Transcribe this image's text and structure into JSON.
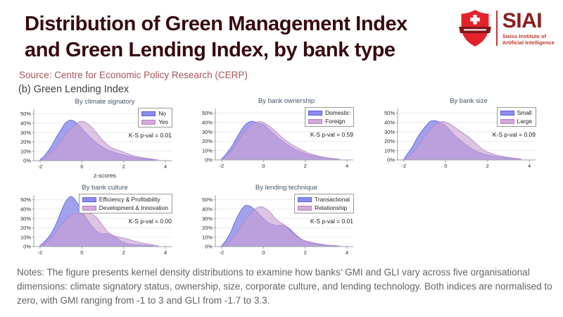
{
  "header": {
    "title_line1": "Distribution of Green Management Index",
    "title_line2": "and Green Lending Index, by bank type",
    "source": "Source: Centre for Economic Policy Research (CERP)",
    "panel_label": "(b) Green Lending Index"
  },
  "logo": {
    "acronym": "SIAI",
    "name_line1": "Swiss Institute of",
    "name_line2": "Artificial Intelligence"
  },
  "notes": {
    "text": "Notes: The figure presents kernel density distributions to examine how banks' GMI and GLI vary across five organisational dimensions: climate signatory status, ownership, size, corporate culture, and lending technology. Both indices are normalised to zero, with GMI ranging from -1 to 3 and GLI from -1.7 to 3.3."
  },
  "colors": {
    "title_maroon": "#37090e",
    "source_red": "#a6565b",
    "logo_red": "#e4222c",
    "logo_dark_red": "#801519",
    "density_blue_fill": "#7d7de8",
    "density_blue_stroke": "#5f5fd8",
    "density_pink_fill": "#cb9fd2",
    "density_pink_stroke": "#b583c4",
    "legend_blue": "#8c8cec",
    "legend_pink": "#d2aad8",
    "grid": "#e8eef2",
    "axis": "#9aa0a6"
  },
  "axis": {
    "x_ticks": [
      -2,
      0,
      2,
      4
    ],
    "y_ticks": [
      0,
      10,
      20,
      30,
      40,
      50
    ],
    "y_tick_suffix": "%",
    "xlim": [
      -2.3,
      4.3
    ],
    "ylim": [
      0,
      55
    ],
    "grid": "horizontal"
  },
  "chart_data": [
    {
      "type": "area",
      "title": "By climate signatory",
      "ks_label": "K-S p-val = 0.01",
      "xlabel": "z-scores",
      "series": [
        {
          "name": "No",
          "color_key": "blue",
          "points": [
            [
              -2,
              1
            ],
            [
              -1.8,
              5
            ],
            [
              -1.5,
              14
            ],
            [
              -1.2,
              26
            ],
            [
              -1,
              33
            ],
            [
              -0.8,
              40
            ],
            [
              -0.6,
              43
            ],
            [
              -0.45,
              43
            ],
            [
              -0.3,
              41
            ],
            [
              -0.1,
              37
            ],
            [
              0.1,
              32
            ],
            [
              0.4,
              25
            ],
            [
              0.7,
              19
            ],
            [
              1,
              14.5
            ],
            [
              1.3,
              11
            ],
            [
              1.6,
              8.5
            ],
            [
              2,
              6
            ],
            [
              2.4,
              4
            ],
            [
              2.8,
              2.5
            ],
            [
              3.2,
              1.5
            ],
            [
              3.5,
              1
            ]
          ]
        },
        {
          "name": "Yes",
          "color_key": "pink",
          "points": [
            [
              -1.95,
              0.5
            ],
            [
              -1.7,
              4
            ],
            [
              -1.4,
              10
            ],
            [
              -1.1,
              18
            ],
            [
              -0.8,
              27
            ],
            [
              -0.5,
              35
            ],
            [
              -0.2,
              40.5
            ],
            [
              0,
              42
            ],
            [
              0.2,
              40.5
            ],
            [
              0.5,
              35
            ],
            [
              0.8,
              27
            ],
            [
              1.1,
              19.5
            ],
            [
              1.4,
              14
            ],
            [
              1.7,
              11.5
            ],
            [
              2,
              9
            ],
            [
              2.3,
              6.5
            ],
            [
              2.7,
              4
            ],
            [
              3.1,
              2.5
            ],
            [
              3.5,
              1.2
            ],
            [
              3.65,
              0.8
            ]
          ]
        }
      ]
    },
    {
      "type": "area",
      "title": "By bank ownership",
      "ks_label": "K-S p-val = 0.59",
      "xlabel": "",
      "series": [
        {
          "name": "Domestic",
          "color_key": "blue",
          "points": [
            [
              -2,
              1
            ],
            [
              -1.8,
              6
            ],
            [
              -1.5,
              15
            ],
            [
              -1.2,
              27
            ],
            [
              -0.9,
              37
            ],
            [
              -0.65,
              41
            ],
            [
              -0.45,
              41
            ],
            [
              -0.25,
              39.5
            ],
            [
              0,
              38
            ],
            [
              0.2,
              34
            ],
            [
              0.5,
              28
            ],
            [
              0.8,
              22
            ],
            [
              1.1,
              17
            ],
            [
              1.5,
              11.5
            ],
            [
              1.9,
              7.5
            ],
            [
              2.3,
              5
            ],
            [
              2.7,
              3
            ],
            [
              3.1,
              2
            ],
            [
              3.55,
              1
            ]
          ]
        },
        {
          "name": "Foreign",
          "color_key": "pink",
          "points": [
            [
              -2,
              0.5
            ],
            [
              -1.7,
              5
            ],
            [
              -1.4,
              13
            ],
            [
              -1.1,
              24
            ],
            [
              -0.8,
              33
            ],
            [
              -0.5,
              38.5
            ],
            [
              -0.2,
              41
            ],
            [
              0,
              40
            ],
            [
              0.2,
              37.5
            ],
            [
              0.5,
              32
            ],
            [
              0.8,
              26
            ],
            [
              1.1,
              20.5
            ],
            [
              1.4,
              16
            ],
            [
              1.8,
              11
            ],
            [
              2.2,
              7
            ],
            [
              2.6,
              4.5
            ],
            [
              3,
              2.5
            ],
            [
              3.4,
              1.3
            ],
            [
              3.65,
              0.8
            ]
          ]
        }
      ]
    },
    {
      "type": "area",
      "title": "By bank size",
      "ks_label": "K-S p-val = 0.09",
      "xlabel": "",
      "series": [
        {
          "name": "Small",
          "color_key": "blue",
          "points": [
            [
              -2,
              1
            ],
            [
              -1.85,
              6
            ],
            [
              -1.6,
              14
            ],
            [
              -1.3,
              26
            ],
            [
              -1,
              35
            ],
            [
              -0.75,
              41
            ],
            [
              -0.55,
              42
            ],
            [
              -0.35,
              41
            ],
            [
              -0.1,
              38.5
            ],
            [
              0.15,
              33
            ],
            [
              0.45,
              26
            ],
            [
              0.75,
              20
            ],
            [
              1.05,
              15
            ],
            [
              1.4,
              10
            ],
            [
              1.8,
              6.5
            ],
            [
              2.2,
              4.5
            ],
            [
              2.7,
              3
            ],
            [
              3.1,
              2
            ],
            [
              3.55,
              1
            ]
          ]
        },
        {
          "name": "Large",
          "color_key": "pink",
          "points": [
            [
              -1.95,
              0.5
            ],
            [
              -1.7,
              4.5
            ],
            [
              -1.4,
              12
            ],
            [
              -1.1,
              22
            ],
            [
              -0.8,
              31
            ],
            [
              -0.5,
              37.5
            ],
            [
              -0.2,
              41
            ],
            [
              0,
              40.5
            ],
            [
              0.2,
              38.5
            ],
            [
              0.5,
              34
            ],
            [
              0.8,
              29
            ],
            [
              1.1,
              24.5
            ],
            [
              1.4,
              18.5
            ],
            [
              1.7,
              12.5
            ],
            [
              2,
              8.5
            ],
            [
              2.4,
              5.5
            ],
            [
              2.8,
              3.5
            ],
            [
              3.2,
              2
            ],
            [
              3.6,
              1
            ]
          ]
        }
      ]
    },
    {
      "type": "area",
      "title": "By bank culture",
      "ks_label": "K-S p-val = 0.00",
      "xlabel": "",
      "series": [
        {
          "name": "Efficiency & Profitability",
          "color_key": "blue",
          "points": [
            [
              -2,
              1
            ],
            [
              -1.8,
              5
            ],
            [
              -1.5,
              13
            ],
            [
              -1.2,
              26
            ],
            [
              -0.95,
              40
            ],
            [
              -0.75,
              49
            ],
            [
              -0.55,
              53.5
            ],
            [
              -0.4,
              52
            ],
            [
              -0.2,
              46
            ],
            [
              0,
              38.5
            ],
            [
              0.2,
              31
            ],
            [
              0.45,
              23
            ],
            [
              0.7,
              16.5
            ],
            [
              0.95,
              13.5
            ],
            [
              1.2,
              14
            ],
            [
              1.4,
              13
            ],
            [
              1.65,
              9.5
            ],
            [
              1.9,
              5.5
            ],
            [
              2.2,
              3
            ],
            [
              2.6,
              2
            ],
            [
              3,
              1.5
            ],
            [
              3.4,
              1
            ]
          ]
        },
        {
          "name": "Development & Innovation",
          "color_key": "pink",
          "points": [
            [
              -2,
              2
            ],
            [
              -1.9,
              1.2
            ],
            [
              -1.65,
              5
            ],
            [
              -1.35,
              12
            ],
            [
              -1.05,
              21
            ],
            [
              -0.75,
              29
            ],
            [
              -0.45,
              34
            ],
            [
              -0.15,
              35.5
            ],
            [
              0.2,
              36
            ],
            [
              0.5,
              34.5
            ],
            [
              0.75,
              30
            ],
            [
              0.95,
              24
            ],
            [
              1.15,
              18
            ],
            [
              1.35,
              13.5
            ],
            [
              1.6,
              11
            ],
            [
              1.9,
              9.5
            ],
            [
              2.2,
              8
            ],
            [
              2.6,
              5.5
            ],
            [
              3,
              3.5
            ],
            [
              3.4,
              1.8
            ],
            [
              3.65,
              0.8
            ]
          ]
        }
      ]
    },
    {
      "type": "area",
      "title": "By lending technique",
      "ks_label": "K-S p-val = 0.01",
      "xlabel": "",
      "series": [
        {
          "name": "Transactional",
          "color_key": "blue",
          "points": [
            [
              -2,
              1
            ],
            [
              -1.85,
              5
            ],
            [
              -1.6,
              14
            ],
            [
              -1.35,
              27
            ],
            [
              -1.1,
              38
            ],
            [
              -0.9,
              43.5
            ],
            [
              -0.75,
              44
            ],
            [
              -0.55,
              42
            ],
            [
              -0.35,
              38
            ],
            [
              -0.15,
              33.5
            ],
            [
              0.05,
              29
            ],
            [
              0.25,
              25.5
            ],
            [
              0.45,
              23.5
            ],
            [
              0.65,
              22.5
            ],
            [
              0.85,
              23
            ],
            [
              1.05,
              22
            ],
            [
              1.25,
              19
            ],
            [
              1.5,
              13.5
            ],
            [
              1.75,
              9
            ],
            [
              2,
              6
            ],
            [
              2.3,
              4
            ],
            [
              2.7,
              2
            ],
            [
              3.1,
              1.3
            ],
            [
              3.5,
              1
            ]
          ]
        },
        {
          "name": "Relationship",
          "color_key": "pink",
          "points": [
            [
              -1.95,
              0.5
            ],
            [
              -1.7,
              4
            ],
            [
              -1.4,
              11
            ],
            [
              -1.1,
              20
            ],
            [
              -0.8,
              30
            ],
            [
              -0.5,
              38.5
            ],
            [
              -0.25,
              42
            ],
            [
              -0.05,
              42.5
            ],
            [
              0.15,
              40
            ],
            [
              0.35,
              36
            ],
            [
              0.55,
              30.5
            ],
            [
              0.75,
              26.5
            ],
            [
              0.95,
              24
            ],
            [
              1.15,
              20.5
            ],
            [
              1.4,
              14.5
            ],
            [
              1.65,
              10
            ],
            [
              1.9,
              7
            ],
            [
              2.2,
              5
            ],
            [
              2.6,
              3.2
            ],
            [
              3,
              1.8
            ],
            [
              3.4,
              1
            ],
            [
              3.65,
              0.7
            ]
          ]
        }
      ]
    }
  ]
}
